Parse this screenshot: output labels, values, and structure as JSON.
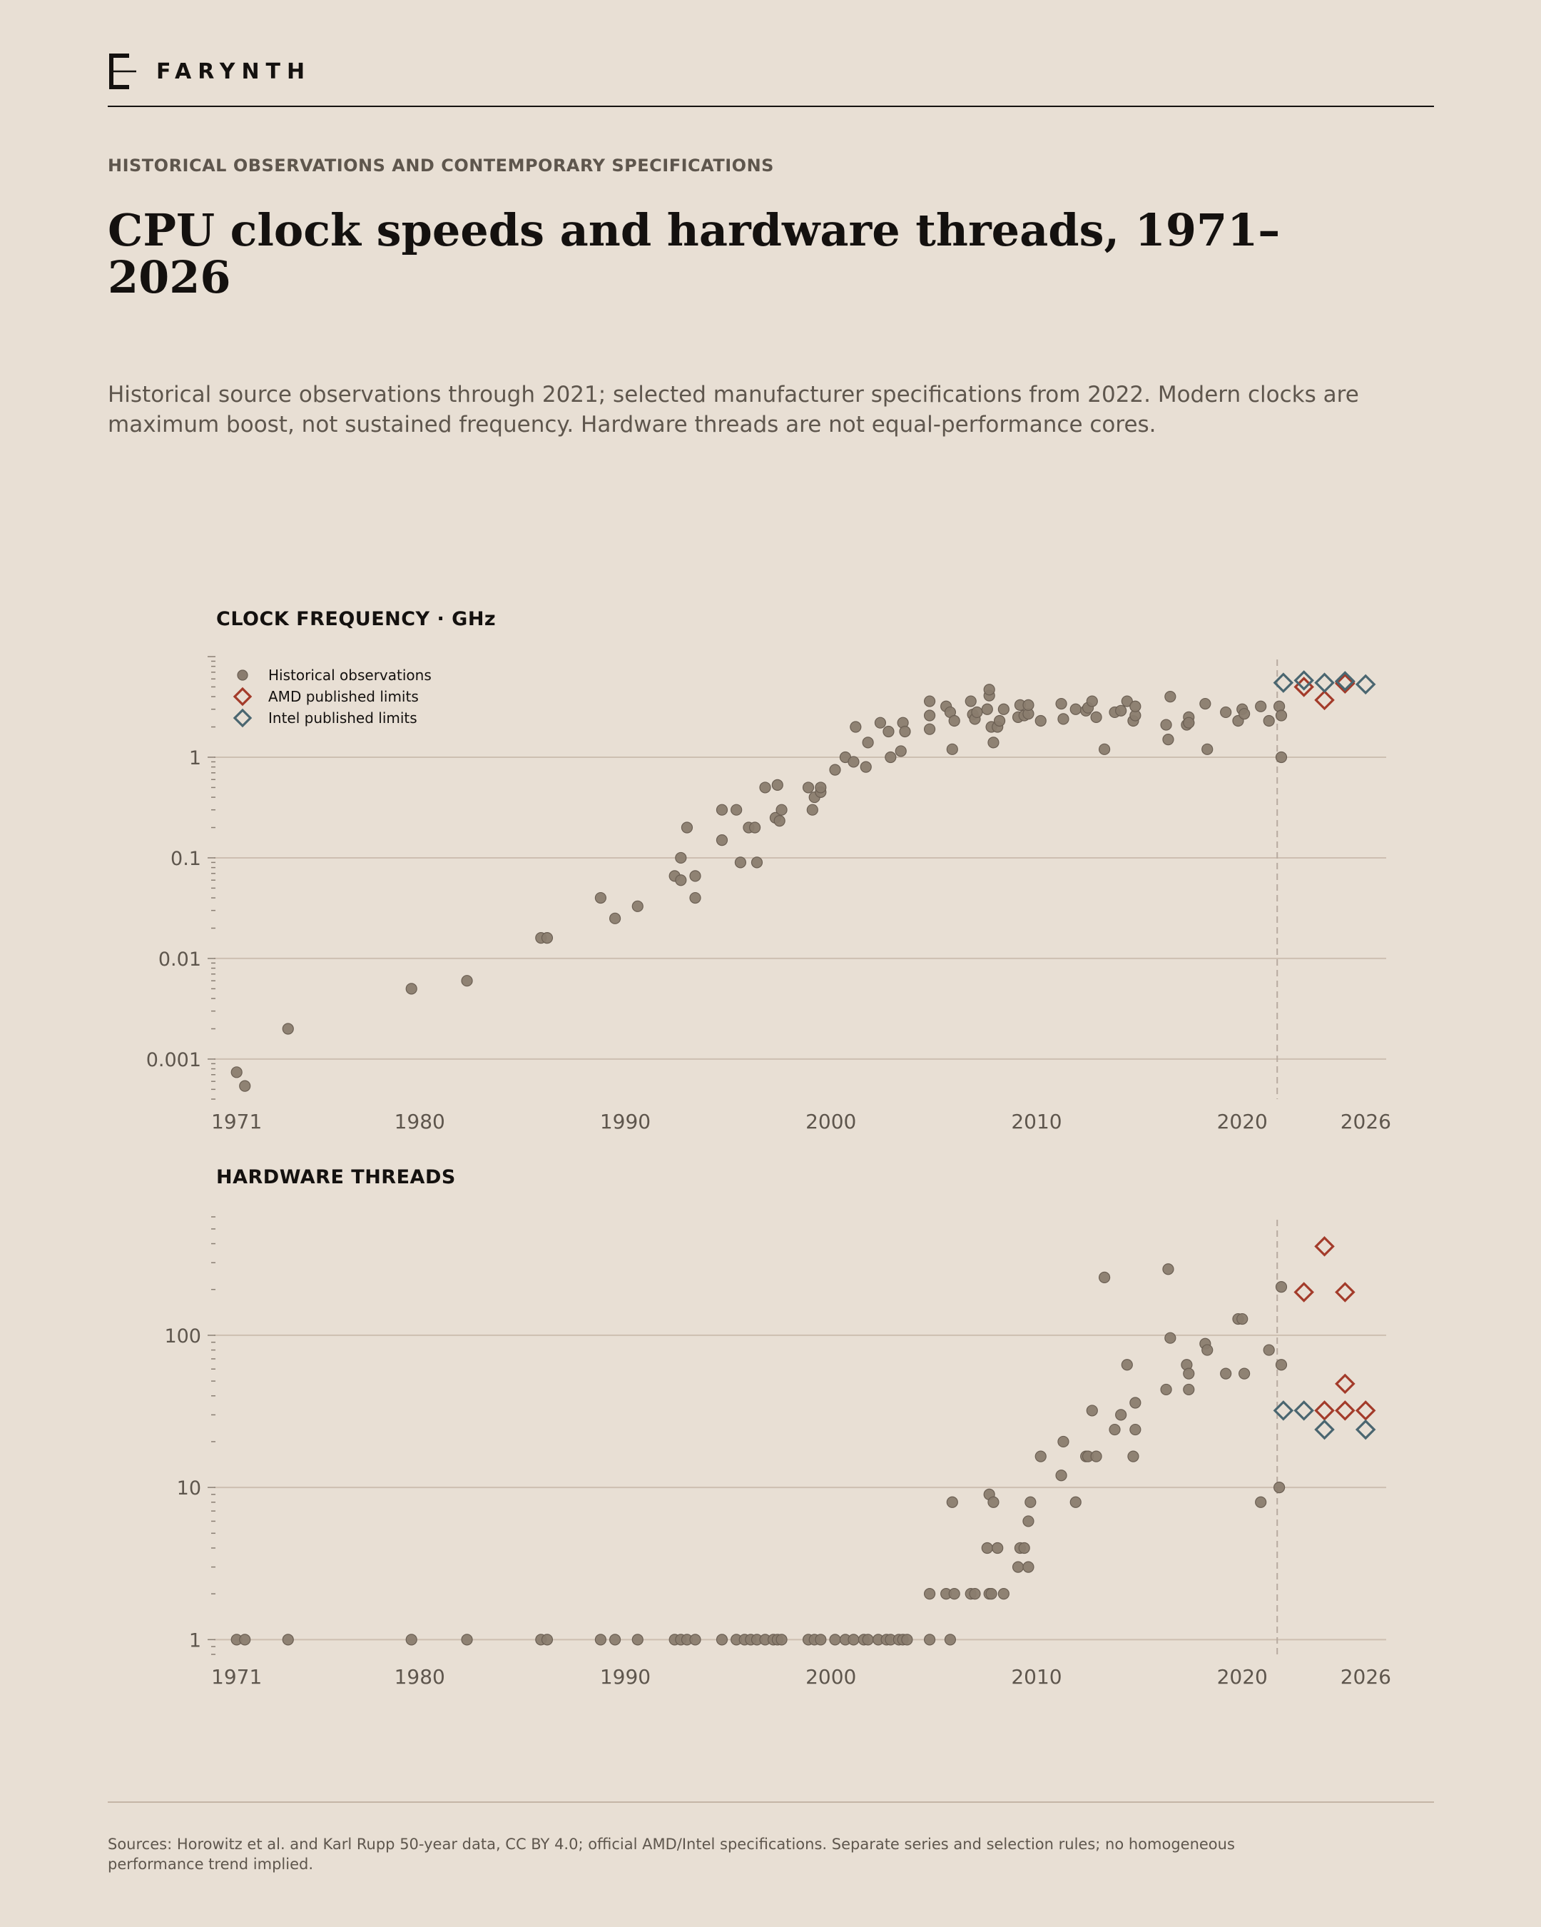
{
  "brand": {
    "name": "FARYNTH"
  },
  "header": {
    "kicker": "HISTORICAL OBSERVATIONS AND CONTEMPORARY SPECIFICATIONS",
    "title": "CPU clock speeds and hardware threads, 1971–2026",
    "subtitle": "Historical source observations through 2021; selected manufacturer specifications from 2022. Modern clocks are maximum boost, not sustained frequency. Hardware threads are not equal-performance cores."
  },
  "footer": {
    "source": "Sources: Horowitz et al. and Karl Rupp 50-year data, CC BY 4.0; official AMD/Intel specifications. Separate series and selection rules; no homogeneous performance trend implied."
  },
  "colors": {
    "background": "#e8dfd4",
    "historical": "#8a7c6e",
    "amd": "#a33b2a",
    "intel": "#4a6670",
    "grid": "#cdbfb1",
    "divider": "#b8aba0"
  },
  "chart_data": [
    {
      "type": "scatter",
      "title": "CLOCK FREQUENCY · GHz",
      "x_ticks": [
        1971,
        1980,
        1990,
        2000,
        2010,
        2020,
        2026
      ],
      "xlim": [
        1970,
        2027
      ],
      "y_scale": "log",
      "ylim": [
        0.0004,
        10
      ],
      "y_ticks": [
        0.001,
        0.01,
        0.1,
        1
      ],
      "y_tick_labels": [
        "0.001",
        "0.01",
        "0.1",
        "1"
      ],
      "divider_x": 2021.7,
      "grid": "horizontal",
      "legend": {
        "position": "top-left",
        "entries": [
          "Historical observations",
          "AMD published limits",
          "Intel published limits"
        ]
      },
      "series": [
        {
          "name": "Historical observations",
          "marker": "circle",
          "points": [
            [
              1971.1,
              0.00074
            ],
            [
              1971.5,
              0.00054
            ],
            [
              1973.6,
              0.002
            ],
            [
              1979.6,
              0.005
            ],
            [
              1982.3,
              0.006
            ],
            [
              1985.9,
              0.016
            ],
            [
              1986.2,
              0.016
            ],
            [
              1988.8,
              0.04
            ],
            [
              1989.5,
              0.025
            ],
            [
              1990.6,
              0.033
            ],
            [
              1992.4,
              0.066
            ],
            [
              1992.7,
              0.06
            ],
            [
              1992.7,
              0.1
            ],
            [
              1993.0,
              0.2
            ],
            [
              1993.4,
              0.04
            ],
            [
              1993.4,
              0.066
            ],
            [
              1994.7,
              0.15
            ],
            [
              1994.7,
              0.3
            ],
            [
              1995.4,
              0.3
            ],
            [
              1995.6,
              0.09
            ],
            [
              1996.0,
              0.2
            ],
            [
              1996.3,
              0.2
            ],
            [
              1996.4,
              0.09
            ],
            [
              1996.8,
              0.5
            ],
            [
              1997.3,
              0.25
            ],
            [
              1997.4,
              0.53
            ],
            [
              1997.5,
              0.233
            ],
            [
              1997.6,
              0.3
            ],
            [
              1998.9,
              0.5
            ],
            [
              1999.1,
              0.3
            ],
            [
              1999.2,
              0.4
            ],
            [
              1999.5,
              0.45
            ],
            [
              1999.5,
              0.5
            ],
            [
              2000.2,
              0.75
            ],
            [
              2000.7,
              1.0
            ],
            [
              2001.1,
              0.9
            ],
            [
              2001.2,
              2.0
            ],
            [
              2001.7,
              0.8
            ],
            [
              2001.8,
              1.4
            ],
            [
              2002.4,
              2.2
            ],
            [
              2002.8,
              1.8
            ],
            [
              2002.9,
              1.0
            ],
            [
              2003.4,
              1.15
            ],
            [
              2003.5,
              2.2
            ],
            [
              2003.6,
              1.8
            ],
            [
              2004.8,
              1.9
            ],
            [
              2004.8,
              2.6
            ],
            [
              2004.8,
              3.6
            ],
            [
              2005.6,
              3.2
            ],
            [
              2005.8,
              2.8
            ],
            [
              2005.9,
              1.2
            ],
            [
              2006.0,
              2.3
            ],
            [
              2006.8,
              3.6
            ],
            [
              2006.9,
              2.66
            ],
            [
              2007.0,
              2.4
            ],
            [
              2007.1,
              2.8
            ],
            [
              2007.6,
              3.0
            ],
            [
              2007.7,
              4.1
            ],
            [
              2007.7,
              4.7
            ],
            [
              2007.8,
              2.0
            ],
            [
              2007.9,
              1.4
            ],
            [
              2008.1,
              2.0
            ],
            [
              2008.2,
              2.3
            ],
            [
              2008.4,
              3.0
            ],
            [
              2009.1,
              2.5
            ],
            [
              2009.2,
              3.3
            ],
            [
              2009.4,
              2.6
            ],
            [
              2009.6,
              2.7
            ],
            [
              2009.6,
              3.3
            ],
            [
              2010.2,
              2.3
            ],
            [
              2011.2,
              3.4
            ],
            [
              2011.3,
              2.4
            ],
            [
              2011.9,
              3.0
            ],
            [
              2012.4,
              2.9
            ],
            [
              2012.5,
              3.1
            ],
            [
              2012.7,
              3.6
            ],
            [
              2012.9,
              2.5
            ],
            [
              2013.3,
              1.2
            ],
            [
              2013.8,
              2.8
            ],
            [
              2014.1,
              2.9
            ],
            [
              2014.4,
              3.6
            ],
            [
              2014.7,
              2.3
            ],
            [
              2014.8,
              2.6
            ],
            [
              2014.8,
              3.2
            ],
            [
              2016.3,
              2.1
            ],
            [
              2016.4,
              1.5
            ],
            [
              2016.5,
              4.0
            ],
            [
              2017.3,
              2.1
            ],
            [
              2017.4,
              2.2
            ],
            [
              2017.4,
              2.5
            ],
            [
              2017.4,
              2.2
            ],
            [
              2018.2,
              3.4
            ],
            [
              2018.3,
              1.2
            ],
            [
              2019.2,
              2.8
            ],
            [
              2019.8,
              2.3
            ],
            [
              2020.0,
              3.0
            ],
            [
              2020.1,
              2.7
            ],
            [
              2020.9,
              3.2
            ],
            [
              2021.3,
              2.3
            ],
            [
              2021.8,
              3.2
            ],
            [
              2021.9,
              2.6
            ],
            [
              2021.9,
              1.0
            ]
          ]
        },
        {
          "name": "AMD published limits",
          "marker": "diamond",
          "points": [
            [
              2023.0,
              5.0
            ],
            [
              2024.0,
              3.7
            ],
            [
              2025.0,
              5.6
            ],
            [
              2025.0,
              5.4
            ]
          ]
        },
        {
          "name": "Intel published limits",
          "marker": "diamond",
          "points": [
            [
              2022.0,
              5.5
            ],
            [
              2023.0,
              5.8
            ],
            [
              2024.0,
              5.5
            ],
            [
              2025.0,
              5.7
            ],
            [
              2026.0,
              5.3
            ]
          ]
        }
      ]
    },
    {
      "type": "scatter",
      "title": "HARDWARE THREADS",
      "x_ticks": [
        1971,
        1980,
        1990,
        2000,
        2010,
        2020,
        2026
      ],
      "xlim": [
        1970,
        2027
      ],
      "y_scale": "log",
      "ylim": [
        0.8,
        600
      ],
      "y_ticks": [
        1,
        10,
        100
      ],
      "y_tick_labels": [
        "1",
        "10",
        "100"
      ],
      "divider_x": 2021.7,
      "grid": "horizontal",
      "series": [
        {
          "name": "Historical observations",
          "marker": "circle",
          "points": [
            [
              1971.1,
              1
            ],
            [
              1971.5,
              1
            ],
            [
              1973.6,
              1
            ],
            [
              1979.6,
              1
            ],
            [
              1982.3,
              1
            ],
            [
              1985.9,
              1
            ],
            [
              1986.2,
              1
            ],
            [
              1988.8,
              1
            ],
            [
              1989.5,
              1
            ],
            [
              1990.6,
              1
            ],
            [
              1992.4,
              1
            ],
            [
              1992.7,
              1
            ],
            [
              1993.0,
              1
            ],
            [
              1993.4,
              1
            ],
            [
              1994.7,
              1
            ],
            [
              1995.4,
              1
            ],
            [
              1995.8,
              1
            ],
            [
              1996.1,
              1
            ],
            [
              1996.4,
              1
            ],
            [
              1996.8,
              1
            ],
            [
              1997.2,
              1
            ],
            [
              1997.4,
              1
            ],
            [
              1997.6,
              1
            ],
            [
              1998.9,
              1
            ],
            [
              1999.2,
              1
            ],
            [
              1999.5,
              1
            ],
            [
              2000.2,
              1
            ],
            [
              2000.7,
              1
            ],
            [
              2001.1,
              1
            ],
            [
              2001.6,
              1
            ],
            [
              2001.8,
              1
            ],
            [
              2002.3,
              1
            ],
            [
              2002.7,
              1
            ],
            [
              2002.9,
              1
            ],
            [
              2003.3,
              1
            ],
            [
              2003.5,
              1
            ],
            [
              2003.7,
              1
            ],
            [
              2004.8,
              1
            ],
            [
              2004.8,
              2
            ],
            [
              2005.6,
              2
            ],
            [
              2005.8,
              1
            ],
            [
              2005.9,
              8
            ],
            [
              2006.0,
              2
            ],
            [
              2006.8,
              2
            ],
            [
              2007.0,
              2
            ],
            [
              2007.6,
              4
            ],
            [
              2007.7,
              2
            ],
            [
              2007.7,
              9
            ],
            [
              2007.8,
              2
            ],
            [
              2007.9,
              8
            ],
            [
              2008.1,
              4
            ],
            [
              2008.4,
              2
            ],
            [
              2009.1,
              3
            ],
            [
              2009.2,
              4
            ],
            [
              2009.4,
              4
            ],
            [
              2009.6,
              3
            ],
            [
              2009.6,
              6
            ],
            [
              2009.7,
              8
            ],
            [
              2010.2,
              16
            ],
            [
              2011.2,
              12
            ],
            [
              2011.3,
              20
            ],
            [
              2011.9,
              8
            ],
            [
              2012.4,
              16
            ],
            [
              2012.5,
              16
            ],
            [
              2012.7,
              32
            ],
            [
              2012.9,
              16
            ],
            [
              2013.3,
              240
            ],
            [
              2013.8,
              24
            ],
            [
              2014.1,
              30
            ],
            [
              2014.4,
              64
            ],
            [
              2014.7,
              16
            ],
            [
              2014.8,
              24
            ],
            [
              2014.8,
              36
            ],
            [
              2016.3,
              44
            ],
            [
              2016.4,
              272
            ],
            [
              2016.5,
              96
            ],
            [
              2017.3,
              64
            ],
            [
              2017.4,
              44
            ],
            [
              2017.4,
              56
            ],
            [
              2018.2,
              88
            ],
            [
              2018.3,
              80
            ],
            [
              2019.2,
              56
            ],
            [
              2019.8,
              128
            ],
            [
              2020.0,
              128
            ],
            [
              2020.1,
              56
            ],
            [
              2020.9,
              8
            ],
            [
              2021.3,
              80
            ],
            [
              2021.8,
              10
            ],
            [
              2021.9,
              208
            ],
            [
              2021.9,
              64
            ]
          ]
        },
        {
          "name": "AMD published limits",
          "marker": "diamond",
          "points": [
            [
              2023.0,
              192
            ],
            [
              2024.0,
              384
            ],
            [
              2024.0,
              32
            ],
            [
              2025.0,
              192
            ],
            [
              2025.0,
              48
            ],
            [
              2025.0,
              32
            ],
            [
              2026.0,
              32
            ]
          ]
        },
        {
          "name": "Intel published limits",
          "marker": "diamond",
          "points": [
            [
              2022.0,
              32
            ],
            [
              2023.0,
              32
            ],
            [
              2024.0,
              24
            ],
            [
              2026.0,
              24
            ]
          ]
        }
      ]
    }
  ]
}
